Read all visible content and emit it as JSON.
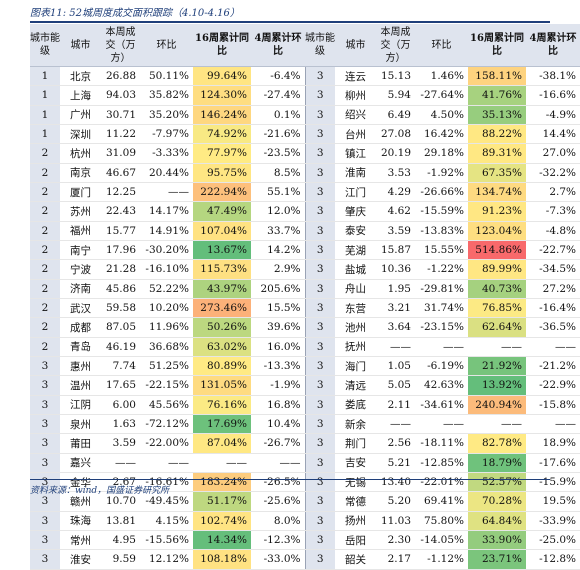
{
  "title": "图表11:  52城周度成交面积跟踪（4.10-4.16）",
  "headers": [
    "城市能级",
    "城市",
    "本周成交（万方）",
    "环比",
    "16周累计同比",
    "4周累计环比",
    "城市能级",
    "城市",
    "本周成交（万方）",
    "环比",
    "16周累计同比",
    "4周累计环比"
  ],
  "rows": [
    {
      "left": [
        "1",
        "北京",
        "26.88",
        "50.11%",
        "99.64%",
        "-6.4%"
      ],
      "right": [
        "3",
        "连云",
        "15.13",
        "1.46%",
        "158.11%",
        "-38.1%"
      ]
    },
    {
      "left": [
        "1",
        "上海",
        "94.03",
        "35.82%",
        "124.30%",
        "-27.4%"
      ],
      "right": [
        "3",
        "柳州",
        "5.94",
        "-27.64%",
        "41.76%",
        "-16.6%"
      ]
    },
    {
      "left": [
        "1",
        "广州",
        "30.71",
        "35.20%",
        "146.24%",
        "0.1%"
      ],
      "right": [
        "3",
        "绍兴",
        "6.49",
        "4.50%",
        "35.13%",
        "-4.9%"
      ]
    },
    {
      "left": [
        "1",
        "深圳",
        "11.22",
        "-7.97%",
        "74.92%",
        "-21.6%"
      ],
      "right": [
        "3",
        "台州",
        "27.08",
        "16.42%",
        "88.22%",
        "14.4%"
      ]
    },
    {
      "left": [
        "2",
        "杭州",
        "31.09",
        "-3.33%",
        "77.97%",
        "-23.5%"
      ],
      "right": [
        "3",
        "镇江",
        "20.19",
        "29.18%",
        "89.31%",
        "27.0%"
      ]
    },
    {
      "left": [
        "2",
        "南京",
        "46.67",
        "20.44%",
        "95.75%",
        "8.5%"
      ],
      "right": [
        "3",
        "淮南",
        "3.53",
        "-1.92%",
        "67.35%",
        "-32.2%"
      ]
    },
    {
      "left": [
        "2",
        "厦门",
        "12.25",
        "——",
        "222.94%",
        "55.1%"
      ],
      "right": [
        "3",
        "江门",
        "4.29",
        "-26.66%",
        "134.74%",
        "2.7%"
      ]
    },
    {
      "left": [
        "2",
        "苏州",
        "22.43",
        "14.17%",
        "47.49%",
        "12.0%"
      ],
      "right": [
        "3",
        "肇庆",
        "4.62",
        "-15.59%",
        "91.23%",
        "-7.3%"
      ]
    },
    {
      "left": [
        "2",
        "福州",
        "15.77",
        "14.91%",
        "107.04%",
        "33.7%"
      ],
      "right": [
        "3",
        "泰安",
        "3.59",
        "-13.83%",
        "123.04%",
        "-4.8%"
      ]
    },
    {
      "left": [
        "2",
        "南宁",
        "17.96",
        "-30.20%",
        "13.67%",
        "14.2%"
      ],
      "right": [
        "3",
        "芜湖",
        "15.87",
        "15.55%",
        "514.86%",
        "-22.7%"
      ]
    },
    {
      "left": [
        "2",
        "宁波",
        "21.28",
        "-16.10%",
        "115.73%",
        "2.9%"
      ],
      "right": [
        "3",
        "盐城",
        "10.36",
        "-1.22%",
        "89.99%",
        "-34.5%"
      ]
    },
    {
      "left": [
        "2",
        "济南",
        "45.86",
        "52.22%",
        "43.97%",
        "205.6%"
      ],
      "right": [
        "3",
        "舟山",
        "1.95",
        "-29.81%",
        "40.73%",
        "27.2%"
      ]
    },
    {
      "left": [
        "2",
        "武汉",
        "59.58",
        "10.20%",
        "273.46%",
        "15.5%"
      ],
      "right": [
        "3",
        "东营",
        "3.21",
        "31.74%",
        "76.85%",
        "-16.4%"
      ]
    },
    {
      "left": [
        "2",
        "成都",
        "87.05",
        "11.96%",
        "50.26%",
        "39.6%"
      ],
      "right": [
        "3",
        "池州",
        "3.64",
        "-23.15%",
        "62.64%",
        "-36.5%"
      ]
    },
    {
      "left": [
        "2",
        "青岛",
        "46.19",
        "36.68%",
        "63.02%",
        "16.0%"
      ],
      "right": [
        "3",
        "抚州",
        "——",
        "——",
        "——",
        "——"
      ]
    },
    {
      "left": [
        "3",
        "惠州",
        "7.74",
        "51.25%",
        "80.89%",
        "-13.3%"
      ],
      "right": [
        "3",
        "海门",
        "1.05",
        "-6.19%",
        "21.92%",
        "-21.2%"
      ]
    },
    {
      "left": [
        "3",
        "温州",
        "17.65",
        "-22.15%",
        "131.05%",
        "-1.9%"
      ],
      "right": [
        "3",
        "清远",
        "5.05",
        "42.63%",
        "13.92%",
        "-22.9%"
      ]
    },
    {
      "left": [
        "3",
        "江阴",
        "6.00",
        "45.56%",
        "76.16%",
        "16.8%"
      ],
      "right": [
        "3",
        "娄底",
        "2.11",
        "-34.61%",
        "240.94%",
        "-15.8%"
      ]
    },
    {
      "left": [
        "3",
        "泉州",
        "1.63",
        "-72.12%",
        "17.69%",
        "10.4%"
      ],
      "right": [
        "3",
        "新余",
        "——",
        "——",
        "——",
        "——"
      ]
    },
    {
      "left": [
        "3",
        "莆田",
        "3.59",
        "-22.00%",
        "87.04%",
        "-26.7%"
      ],
      "right": [
        "3",
        "荆门",
        "2.56",
        "-18.11%",
        "82.78%",
        "18.9%"
      ]
    },
    {
      "left": [
        "3",
        "嘉兴",
        "——",
        "——",
        "——",
        "——"
      ],
      "right": [
        "3",
        "吉安",
        "5.21",
        "-12.85%",
        "18.79%",
        "-17.6%"
      ]
    },
    {
      "left": [
        "3",
        "金华",
        "2.67",
        "-16.61%",
        "183.24%",
        "-26.5%"
      ],
      "right": [
        "3",
        "无锡",
        "13.40",
        "-22.01%",
        "52.57%",
        "-15.9%"
      ]
    },
    {
      "left": [
        "3",
        "赣州",
        "10.70",
        "-49.45%",
        "51.17%",
        "-25.6%"
      ],
      "right": [
        "3",
        "常德",
        "5.20",
        "69.41%",
        "70.28%",
        "19.5%"
      ]
    },
    {
      "left": [
        "3",
        "珠海",
        "13.81",
        "4.15%",
        "102.74%",
        "8.0%"
      ],
      "right": [
        "3",
        "扬州",
        "11.03",
        "75.80%",
        "64.84%",
        "-33.9%"
      ]
    },
    {
      "left": [
        "3",
        "常州",
        "4.95",
        "-15.56%",
        "14.34%",
        "-12.3%"
      ],
      "right": [
        "3",
        "岳阳",
        "2.30",
        "-14.05%",
        "33.90%",
        "-25.0%"
      ]
    },
    {
      "left": [
        "3",
        "淮安",
        "9.59",
        "12.12%",
        "108.18%",
        "-33.0%"
      ],
      "right": [
        "3",
        "韶关",
        "2.17",
        "-1.12%",
        "23.71%",
        "-12.8%"
      ]
    }
  ],
  "source": "资料来源：wind，国盛证券研究所",
  "colors": {
    "header_bg": "#dfe4ee",
    "level_bg": "#dfe4ee",
    "title": "#1f3f7a",
    "scale_low": "#63be7b",
    "scale_mid": "#ffeb84",
    "scale_high": "#f8696b"
  }
}
